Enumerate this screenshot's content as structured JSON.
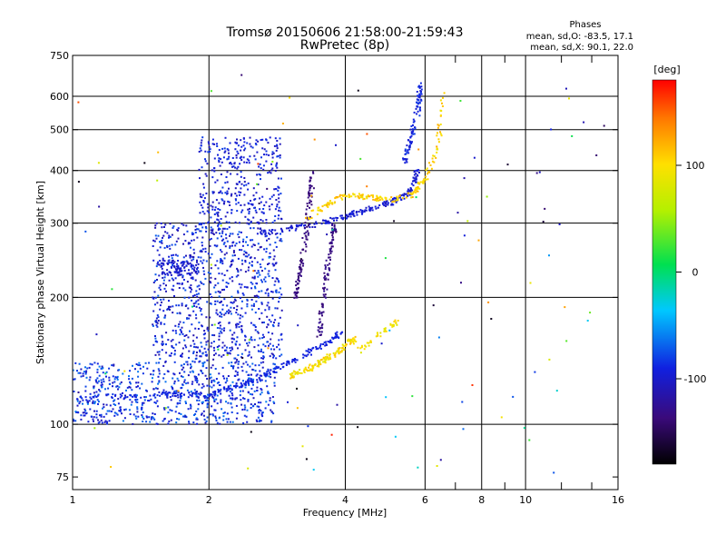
{
  "chart_data": {
    "type": "scatter",
    "title": "Tromsø 20150606 21:58:00-21:59:43",
    "subtitle": "RwPretec (8p)",
    "xlabel": "Frequency [MHz]",
    "ylabel": "Stationary phase Virtual Height [km]",
    "x_scale": "log",
    "y_scale": "log",
    "xlim": [
      1,
      16
    ],
    "ylim": [
      70,
      750
    ],
    "x_ticks": [
      1,
      2,
      4,
      6,
      8,
      10,
      16
    ],
    "x_tick_labels": [
      "1",
      "2",
      "4",
      "6",
      "8",
      "10",
      "16"
    ],
    "x_grid": [
      2,
      4,
      6,
      8,
      10
    ],
    "x_minor": [
      7,
      9,
      12,
      14
    ],
    "y_ticks": [
      75,
      100,
      200,
      300,
      400,
      500,
      600,
      750
    ],
    "y_tick_labels": [
      "75",
      "100",
      "200",
      "300",
      "400",
      "500",
      "600",
      "750"
    ],
    "y_grid": [
      100,
      200,
      300,
      400,
      500,
      600
    ],
    "grid": true,
    "stats": {
      "heading": "Phases",
      "line_o": "mean, sd,O: -83.5, 17.1",
      "line_x": "mean, sd,X:  90.1, 22.0"
    },
    "colorbar": {
      "label": "[deg]",
      "range": [
        -180,
        180
      ],
      "ticks": [
        100,
        0,
        -100
      ],
      "tick_labels": [
        "100",
        "0",
        "-100"
      ],
      "colormap": "rainbow-black-to-red"
    },
    "series": [
      {
        "kind": "cloud",
        "x": [
          1.0,
          2.8
        ],
        "y": [
          100,
          140
        ],
        "phase": [
          -110,
          -60
        ],
        "count": 700
      },
      {
        "kind": "cloud",
        "x": [
          1.5,
          2.9
        ],
        "y": [
          140,
          300
        ],
        "phase": [
          -115,
          -70
        ],
        "count": 900
      },
      {
        "kind": "cloud",
        "x": [
          1.9,
          2.9
        ],
        "y": [
          300,
          480
        ],
        "phase": [
          -110,
          -80
        ],
        "count": 350
      },
      {
        "kind": "cloud",
        "x": [
          1.55,
          1.9
        ],
        "y": [
          225,
          245
        ],
        "phase": [
          -110,
          -90
        ],
        "count": 90
      },
      {
        "kind": "trace",
        "x": [
          1.0,
          1.6,
          2.0,
          2.4,
          2.8,
          3.2,
          3.6,
          3.9
        ],
        "y": [
          115,
          118,
          117,
          125,
          135,
          145,
          155,
          165
        ],
        "phase": [
          -95,
          -85
        ],
        "count": 250
      },
      {
        "kind": "trace",
        "x": [
          2.6,
          3.0,
          3.5,
          4.0,
          4.5,
          5.0,
          5.5,
          5.8
        ],
        "y": [
          285,
          290,
          300,
          310,
          325,
          335,
          350,
          400
        ],
        "phase": [
          -105,
          -90
        ],
        "count": 220
      },
      {
        "kind": "trace",
        "x": [
          5.4,
          5.6,
          5.8,
          5.85
        ],
        "y": [
          420,
          480,
          560,
          640
        ],
        "phase": [
          -100,
          -80
        ],
        "count": 90
      },
      {
        "kind": "trace",
        "x": [
          3.1,
          3.2,
          3.3,
          3.4
        ],
        "y": [
          200,
          240,
          300,
          400
        ],
        "phase": [
          -140,
          -130
        ],
        "count": 110
      },
      {
        "kind": "trace",
        "x": [
          3.5,
          3.6,
          3.7,
          3.8
        ],
        "y": [
          160,
          210,
          260,
          300
        ],
        "phase": [
          -140,
          -125
        ],
        "count": 110
      },
      {
        "kind": "trace",
        "x": [
          3.3,
          3.6,
          3.9,
          4.2,
          4.6,
          5.0,
          5.6,
          6.0,
          6.4,
          6.6
        ],
        "y": [
          310,
          330,
          345,
          350,
          345,
          340,
          350,
          380,
          450,
          620
        ],
        "phase": [
          90,
          125
        ],
        "count": 200
      },
      {
        "kind": "trace",
        "x": [
          3.0,
          3.3,
          3.6,
          3.9,
          4.2
        ],
        "y": [
          130,
          135,
          142,
          150,
          160
        ],
        "phase": [
          80,
          120
        ],
        "count": 140
      },
      {
        "kind": "trace",
        "x": [
          4.3,
          4.6,
          5.0,
          5.2
        ],
        "y": [
          150,
          160,
          170,
          175
        ],
        "phase": [
          80,
          110
        ],
        "count": 40
      },
      {
        "kind": "cloud",
        "x": [
          1.0,
          16
        ],
        "y": [
          75,
          680
        ],
        "phase": [
          -180,
          180
        ],
        "count": 120
      }
    ]
  }
}
